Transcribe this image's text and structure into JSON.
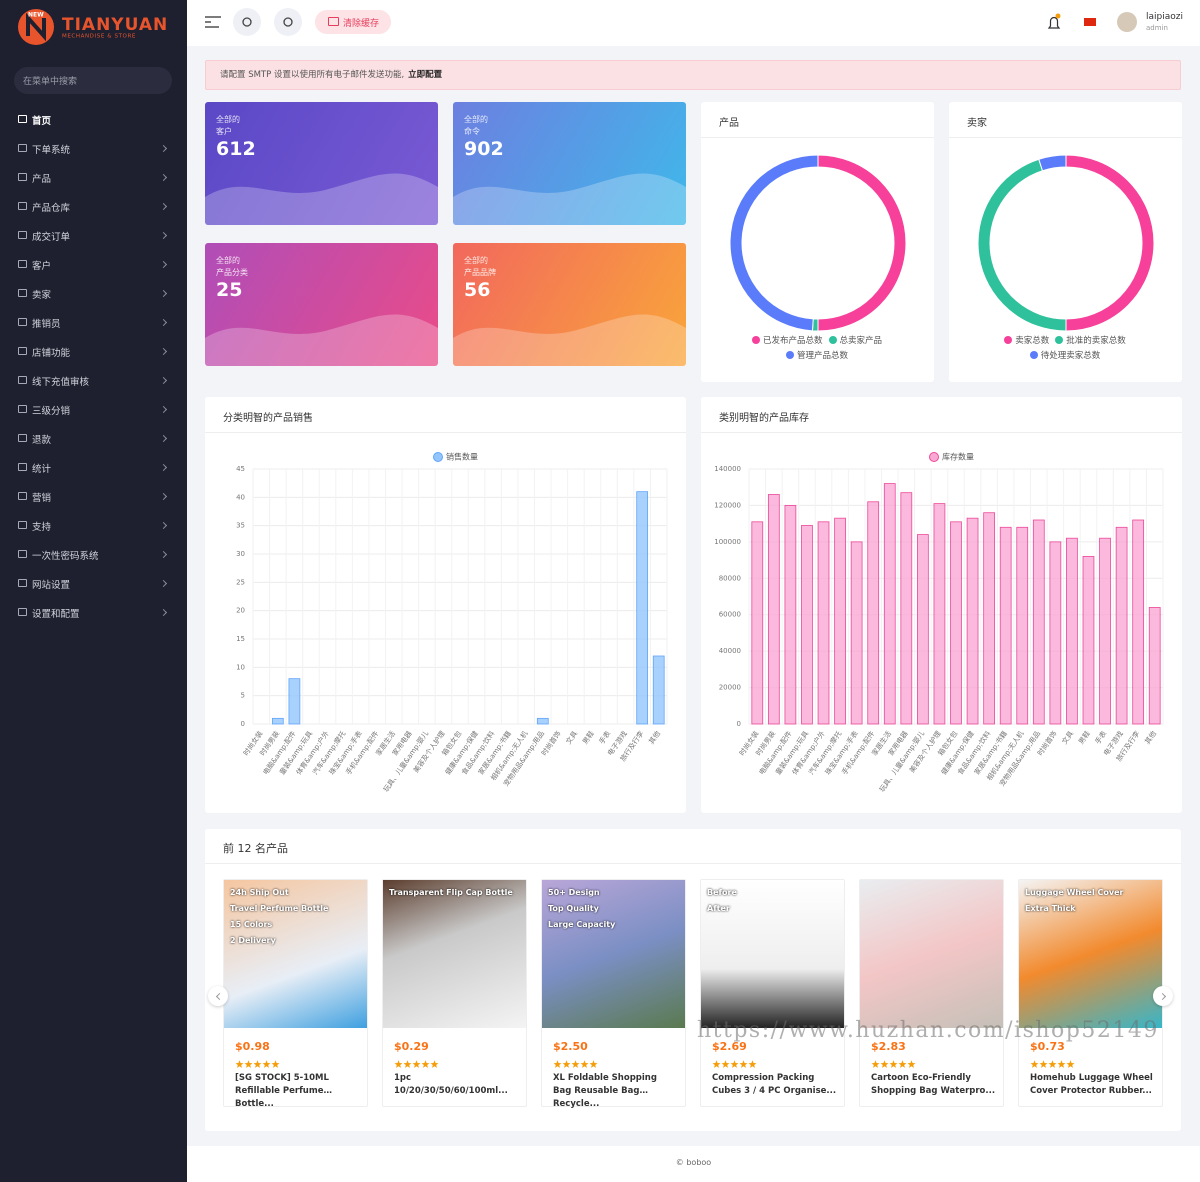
{
  "sidebar": {
    "logo": {
      "badge": "NEW",
      "name": "TIANYUAN",
      "tagline": "MECHANDISE & STORE"
    },
    "search_placeholder": "在菜单中搜索",
    "menu": [
      "首页",
      "下单系统",
      "产品",
      "产品仓库",
      "成交订单",
      "客户",
      "卖家",
      "推销员",
      "店铺功能",
      "线下充值审核",
      "三级分销",
      "退款",
      "统计",
      "营销",
      "支持",
      "一次性密码系统",
      "网站设置",
      "设置和配置"
    ]
  },
  "header": {
    "clear_cache": "清除缓存",
    "user": {
      "name": "laipiaozi",
      "role": "admin"
    }
  },
  "alert": {
    "text": "请配置 SMTP 设置以使用所有电子邮件发送功能,",
    "link": "立即配置"
  },
  "stats": [
    {
      "label": "全部的",
      "sublabel": "客户",
      "value": 612
    },
    {
      "label": "全部的",
      "sublabel": "命令",
      "value": 902
    },
    {
      "label": "全部的",
      "sublabel": "产品分类",
      "value": 25
    },
    {
      "label": "全部的",
      "sublabel": "产品品牌",
      "value": 56
    }
  ],
  "donuts": [
    {
      "type": "pie",
      "title": "产品",
      "donut": true,
      "categories": [
        "已发布产品总数",
        "总卖家产品",
        "管理产品总数"
      ],
      "values": [
        50,
        1,
        49
      ],
      "colors": [
        "#f6409a",
        "#2fc19b",
        "#5b7cfa"
      ]
    },
    {
      "type": "pie",
      "title": "卖家",
      "donut": true,
      "categories": [
        "卖家总数",
        "批准的卖家总数",
        "待处理卖家总数"
      ],
      "values": [
        50,
        45,
        5
      ],
      "colors": [
        "#f6409a",
        "#2fc19b",
        "#5b7cfa"
      ]
    }
  ],
  "bar_charts": [
    {
      "type": "bar",
      "title": "分类明智的产品销售",
      "categories": [
        "时尚女装",
        "时尚男装",
        "电脑&amp;配件",
        "童装&amp;玩具",
        "体育&amp;户外",
        "汽车&amp;摩托",
        "珠宝&amp;手表",
        "手机&amp;配件",
        "家居生活",
        "家用电器",
        "玩具、儿童&amp;婴儿",
        "美容及个人护理",
        "箱包女包",
        "健康&amp;保健",
        "食品&amp;饮料",
        "家居&amp;书籍",
        "相机&amp;无人机",
        "宠物用品&amp;用品",
        "时尚首饰",
        "文具",
        "男鞋",
        "手表",
        "电子游戏",
        "旅行及行李",
        "其他"
      ],
      "series": [
        {
          "name": "销售数量",
          "color": "#93c5fd",
          "border": "#60a5fa",
          "values": [
            0,
            1,
            8,
            0,
            0,
            0,
            0,
            0,
            0,
            0,
            0,
            0,
            0,
            0,
            0,
            0,
            0,
            1,
            0,
            0,
            0,
            0,
            0,
            41,
            12
          ]
        }
      ],
      "ylim": [
        0,
        45
      ],
      "yticks": [
        0,
        5,
        10,
        15,
        20,
        25,
        30,
        35,
        40,
        45
      ],
      "grid": true
    },
    {
      "type": "bar",
      "title": "类别明智的产品库存",
      "categories": [
        "时尚女装",
        "时尚男装",
        "电脑&amp;配件",
        "童装&amp;玩具",
        "体育&amp;户外",
        "汽车&amp;摩托",
        "珠宝&amp;手表",
        "手机&amp;配件",
        "家居生活",
        "家用电器",
        "玩具、儿童&amp;婴儿",
        "美容及个人护理",
        "箱包女包",
        "健康&amp;保健",
        "食品&amp;饮料",
        "家居&amp;书籍",
        "相机&amp;无人机",
        "宠物用品&amp;用品",
        "时尚首饰",
        "文具",
        "男鞋",
        "手表",
        "电子游戏",
        "旅行及行李",
        "其他"
      ],
      "series": [
        {
          "name": "库存数量",
          "color": "#f9a8d4",
          "border": "#ec4899",
          "values": [
            111000,
            126000,
            120000,
            109000,
            111000,
            113000,
            100000,
            122000,
            132000,
            127000,
            104000,
            121000,
            111000,
            113000,
            116000,
            108000,
            108000,
            112000,
            100000,
            102000,
            92000,
            102000,
            108000,
            112000,
            64000
          ]
        }
      ],
      "ylim": [
        0,
        140000
      ],
      "yticks": [
        0,
        20000,
        40000,
        60000,
        80000,
        100000,
        120000,
        140000
      ],
      "grid": true
    }
  ],
  "products": {
    "title": "前 12 名产品",
    "items": [
      {
        "price": "$0.98",
        "name": "[SG STOCK] 5-10ML Refillable Perfume Bottle...",
        "image_text": [
          "24h Ship Out",
          "Travel Perfume Bottle",
          "15 Colors",
          "2 Delivery"
        ]
      },
      {
        "price": "$0.29",
        "name": "1pc 10/20/30/50/60/100ml...",
        "image_text": [
          "Transparent Flip Cap Bottle"
        ]
      },
      {
        "price": "$2.50",
        "name": "XL Foldable Shopping Bag Reusable Bag Recycle...",
        "image_text": [
          "50+ Design",
          "Top Quality",
          "Large Capacity"
        ]
      },
      {
        "price": "$2.69",
        "name": "Compression Packing Cubes 3 / 4 PC Organise...",
        "image_text": [
          "Before",
          "After"
        ]
      },
      {
        "price": "$2.83",
        "name": "Cartoon Eco-Friendly Shopping Bag Waterpro..."
      },
      {
        "price": "$0.73",
        "name": "Homehub Luggage Wheel Cover Protector Rubber...",
        "image_text": [
          "Luggage Wheel Cover",
          "Extra Thick"
        ]
      }
    ]
  },
  "watermark": "https://www.huzhan.com/ishop52149",
  "footer": "© boboo"
}
